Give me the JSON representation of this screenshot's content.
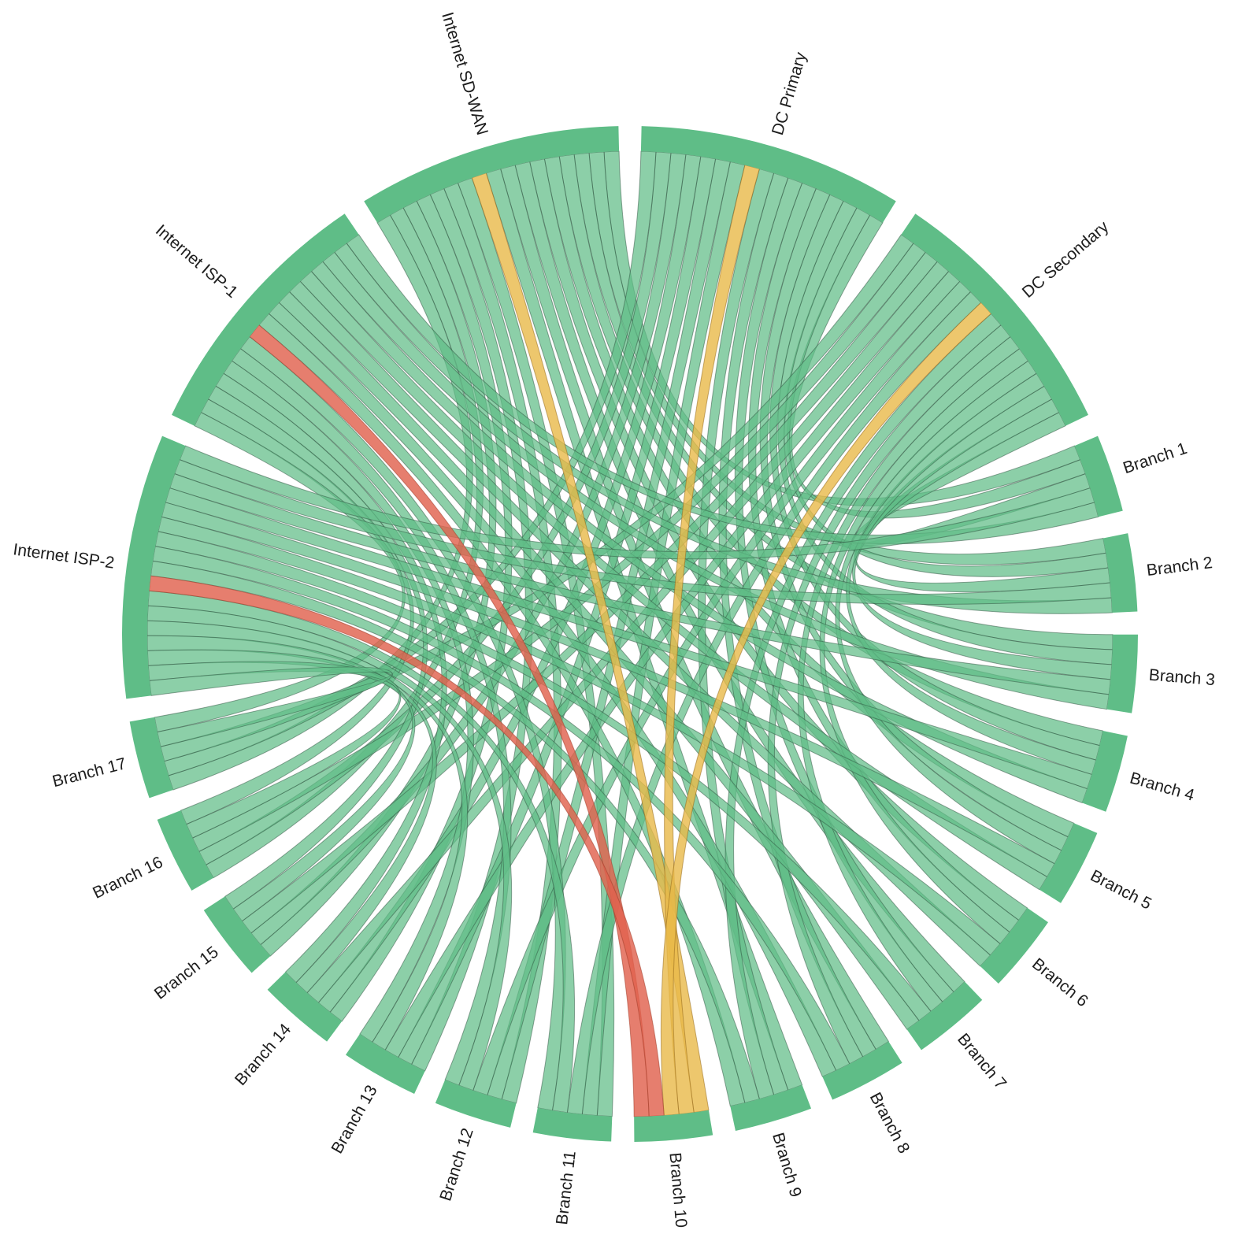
{
  "chart_data": {
    "type": "chord",
    "title": "",
    "background": "#ffffff",
    "node_order_clockwise_from_top": [
      "DC Primary",
      "DC Secondary",
      "Branch 1",
      "Branch 2",
      "Branch 3",
      "Branch 4",
      "Branch 5",
      "Branch 6",
      "Branch 7",
      "Branch 8",
      "Branch 9",
      "Branch 10",
      "Branch 11",
      "Branch 12",
      "Branch 13",
      "Branch 14",
      "Branch 15",
      "Branch 16",
      "Branch 17",
      "Internet ISP-2",
      "Internet ISP-1",
      "Internet SD-WAN"
    ],
    "hubs": [
      "Internet SD-WAN",
      "DC Primary",
      "DC Secondary",
      "Internet ISP-2",
      "Internet ISP-1"
    ],
    "branches": [
      "Branch 1",
      "Branch 2",
      "Branch 3",
      "Branch 4",
      "Branch 5",
      "Branch 6",
      "Branch 7",
      "Branch 8",
      "Branch 9",
      "Branch 10",
      "Branch 11",
      "Branch 12",
      "Branch 13",
      "Branch 14",
      "Branch 15",
      "Branch 16",
      "Branch 17"
    ],
    "link_weight": 1,
    "links": [
      {
        "source": "Internet SD-WAN",
        "targets": {
          "Branch 1": "up",
          "Branch 2": "up",
          "Branch 3": "up",
          "Branch 4": "up",
          "Branch 5": "up",
          "Branch 6": "up",
          "Branch 7": "up",
          "Branch 8": "up",
          "Branch 9": "up",
          "Branch 10": "degraded",
          "Branch 11": "up",
          "Branch 12": "up",
          "Branch 13": "up",
          "Branch 14": "up",
          "Branch 15": "up",
          "Branch 16": "up",
          "Branch 17": "up"
        }
      },
      {
        "source": "DC Primary",
        "targets": {
          "Branch 1": "up",
          "Branch 2": "up",
          "Branch 3": "up",
          "Branch 4": "up",
          "Branch 5": "up",
          "Branch 6": "up",
          "Branch 7": "up",
          "Branch 8": "up",
          "Branch 9": "up",
          "Branch 10": "degraded",
          "Branch 11": "up",
          "Branch 12": "up",
          "Branch 13": "up",
          "Branch 14": "up",
          "Branch 15": "up",
          "Branch 16": "up",
          "Branch 17": "up"
        }
      },
      {
        "source": "DC Secondary",
        "targets": {
          "Branch 1": "up",
          "Branch 2": "up",
          "Branch 3": "up",
          "Branch 4": "up",
          "Branch 5": "up",
          "Branch 6": "up",
          "Branch 7": "up",
          "Branch 8": "up",
          "Branch 9": "up",
          "Branch 10": "degraded",
          "Branch 11": "up",
          "Branch 12": "up",
          "Branch 13": "up",
          "Branch 14": "up",
          "Branch 15": "up",
          "Branch 16": "up",
          "Branch 17": "up"
        }
      },
      {
        "source": "Internet ISP-1",
        "targets": {
          "Branch 1": "up",
          "Branch 2": "up",
          "Branch 3": "up",
          "Branch 4": "up",
          "Branch 5": "up",
          "Branch 6": "up",
          "Branch 7": "up",
          "Branch 8": "up",
          "Branch 9": "up",
          "Branch 10": "down",
          "Branch 11": "up",
          "Branch 12": "up",
          "Branch 13": "up",
          "Branch 14": "up",
          "Branch 15": "up",
          "Branch 16": "up",
          "Branch 17": "up"
        }
      },
      {
        "source": "Internet ISP-2",
        "targets": {
          "Branch 1": "up",
          "Branch 2": "up",
          "Branch 3": "up",
          "Branch 4": "up",
          "Branch 5": "up",
          "Branch 6": "up",
          "Branch 7": "up",
          "Branch 8": "up",
          "Branch 9": "up",
          "Branch 10": "down",
          "Branch 11": "up",
          "Branch 12": "up",
          "Branch 13": "up",
          "Branch 14": "up",
          "Branch 15": "up",
          "Branch 16": "up",
          "Branch 17": "up"
        }
      }
    ],
    "status_colors": {
      "up": "#5FBD87",
      "degraded": "#E9B949",
      "down": "#E0614E"
    },
    "arc_color": "#5FBD87",
    "legend": "none",
    "layout": {
      "center": [
        800,
        805
      ],
      "outer_radius": 645,
      "inner_radius": 613,
      "pad_deg": 2.6,
      "label_radius": 661,
      "label_font_size": 21
    }
  }
}
